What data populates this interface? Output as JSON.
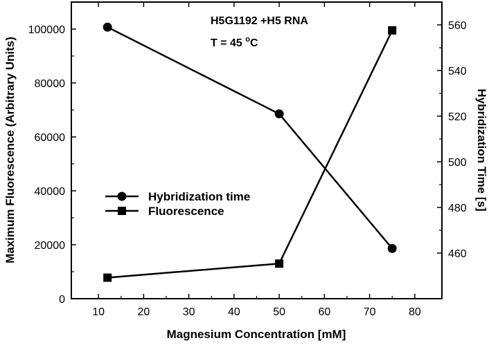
{
  "chart_data": {
    "type": "line",
    "xlabel": "Magnesium Concentration [mM]",
    "ylabel_left": "Maximum Fluorescence (Arbitrary Units)",
    "ylabel_right": "Hybridization Time [s]",
    "xlim": [
      4,
      86
    ],
    "ylim_left": [
      0,
      110000
    ],
    "ylim_right": [
      440,
      570
    ],
    "x_ticks": [
      10,
      20,
      30,
      40,
      50,
      60,
      70,
      80
    ],
    "y_left_ticks": [
      0,
      20000,
      40000,
      60000,
      80000,
      100000
    ],
    "y_right_ticks": [
      460,
      480,
      500,
      520,
      540,
      560
    ],
    "annotations": {
      "sample": "H5G1192 +H5 RNA",
      "temp_prefix": "T = 45 ",
      "temp_sup": "o",
      "temp_suffix": "C"
    },
    "legend_position": "center-left",
    "grid": false,
    "series": [
      {
        "name": "Hybridization time",
        "axis": "right",
        "marker": "circle",
        "x": [
          12,
          50,
          75
        ],
        "y": [
          559,
          521,
          462
        ]
      },
      {
        "name": "Fluorescence",
        "axis": "left",
        "marker": "square",
        "x": [
          12,
          50,
          75
        ],
        "y": [
          7800,
          13000,
          99500
        ]
      }
    ]
  }
}
